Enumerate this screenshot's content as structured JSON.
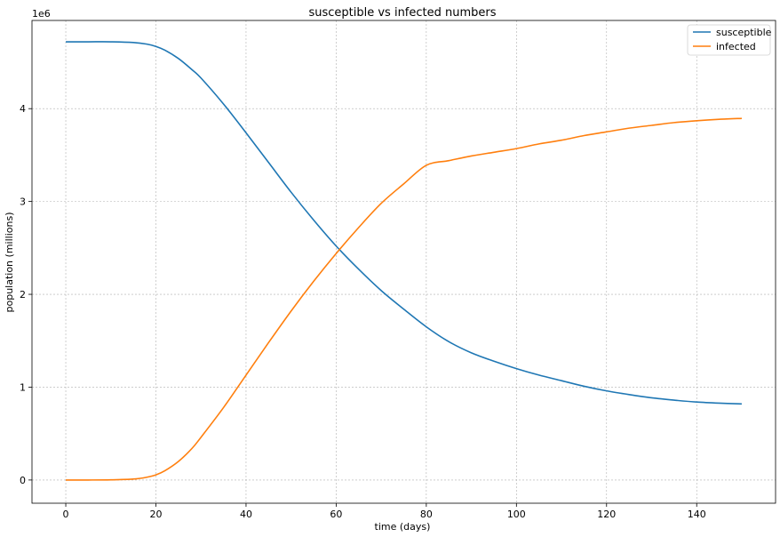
{
  "chart_data": {
    "type": "line",
    "title": "susceptible vs infected numbers",
    "xlabel": "time (days)",
    "ylabel": "population (millions)",
    "y_offset_text": "1e6",
    "xlim": [
      -7.5,
      157.5
    ],
    "ylim": [
      -250000,
      4950000
    ],
    "x_ticks": [
      0,
      20,
      40,
      60,
      80,
      100,
      120,
      140
    ],
    "y_ticks": [
      0,
      1000000,
      2000000,
      3000000,
      4000000
    ],
    "y_tick_labels": [
      "0",
      "1",
      "2",
      "3",
      "4"
    ],
    "grid": true,
    "legend_position": "top-right",
    "x": [
      0,
      5,
      10,
      15,
      18,
      20,
      22,
      25,
      28,
      30,
      35,
      40,
      45,
      50,
      55,
      60,
      65,
      70,
      75,
      80,
      85,
      90,
      95,
      100,
      105,
      110,
      115,
      120,
      125,
      130,
      135,
      140,
      145,
      150
    ],
    "series": [
      {
        "name": "susceptible",
        "color": "#1f77b4",
        "values": [
          4720000,
          4720000,
          4720000,
          4712000,
          4695000,
          4670000,
          4630000,
          4540000,
          4420000,
          4330000,
          4050000,
          3740000,
          3420000,
          3100000,
          2800000,
          2520000,
          2270000,
          2040000,
          1840000,
          1650000,
          1490000,
          1370000,
          1280000,
          1200000,
          1130000,
          1070000,
          1010000,
          960000,
          920000,
          885000,
          860000,
          840000,
          828000,
          820000
        ]
      },
      {
        "name": "infected",
        "color": "#ff7f0e",
        "values": [
          0,
          0,
          2000,
          10000,
          30000,
          55000,
          100000,
          200000,
          340000,
          460000,
          780000,
          1130000,
          1480000,
          1820000,
          2140000,
          2440000,
          2720000,
          2980000,
          3190000,
          3390000,
          3440000,
          3490000,
          3530000,
          3570000,
          3620000,
          3660000,
          3710000,
          3750000,
          3790000,
          3820000,
          3850000,
          3870000,
          3885000,
          3895000
        ]
      }
    ]
  }
}
